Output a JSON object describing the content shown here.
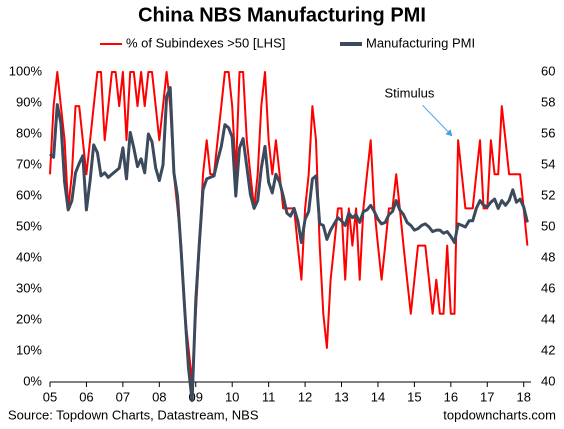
{
  "chart_data": {
    "type": "line",
    "title": "China NBS Manufacturing PMI",
    "source": "Source: Topdown Charts, Datastream, NBS",
    "credit": "topdowncharts.com",
    "annotation": {
      "text": "Stimulus",
      "x": 2016.1,
      "y": 78
    },
    "legend": "top",
    "x": [
      2005,
      2005.1,
      2005.2,
      2005.3,
      2005.4,
      2005.5,
      2005.6,
      2005.7,
      2005.8,
      2005.9,
      2006,
      2006.1,
      2006.2,
      2006.3,
      2006.4,
      2006.5,
      2006.6,
      2006.7,
      2006.8,
      2006.9,
      2007,
      2007.1,
      2007.2,
      2007.3,
      2007.4,
      2007.5,
      2007.6,
      2007.7,
      2007.8,
      2007.9,
      2008,
      2008.1,
      2008.2,
      2008.3,
      2008.4,
      2008.5,
      2008.6,
      2008.7,
      2008.8,
      2008.9,
      2009,
      2009.1,
      2009.2,
      2009.3,
      2009.4,
      2009.5,
      2009.6,
      2009.7,
      2009.8,
      2009.9,
      2010,
      2010.1,
      2010.2,
      2010.3,
      2010.4,
      2010.5,
      2010.6,
      2010.7,
      2010.8,
      2010.9,
      2011,
      2011.1,
      2011.2,
      2011.3,
      2011.4,
      2011.5,
      2011.6,
      2011.7,
      2011.8,
      2011.9,
      2012,
      2012.1,
      2012.2,
      2012.3,
      2012.4,
      2012.5,
      2012.6,
      2012.7,
      2012.8,
      2012.9,
      2013,
      2013.1,
      2013.2,
      2013.3,
      2013.4,
      2013.5,
      2013.6,
      2013.7,
      2013.8,
      2013.9,
      2014,
      2014.1,
      2014.2,
      2014.3,
      2014.4,
      2014.5,
      2014.6,
      2014.7,
      2014.8,
      2014.9,
      2015,
      2015.1,
      2015.2,
      2015.3,
      2015.4,
      2015.5,
      2015.6,
      2015.7,
      2015.8,
      2015.9,
      2016,
      2016.1,
      2016.2,
      2016.3,
      2016.4,
      2016.5,
      2016.6,
      2016.7,
      2016.8,
      2016.9,
      2017,
      2017.1,
      2017.2,
      2017.3,
      2017.4,
      2017.5,
      2017.6,
      2017.7,
      2017.8,
      2017.9,
      2018,
      2018.1
    ],
    "series": [
      {
        "name": "% of Subindexes >50 [LHS]",
        "color": "#ff0000",
        "axis": "y",
        "values": [
          67,
          89,
          100,
          89,
          78,
          56,
          67,
          89,
          89,
          78,
          67,
          78,
          89,
          100,
          100,
          78,
          89,
          100,
          100,
          89,
          100,
          78,
          100,
          100,
          89,
          100,
          89,
          100,
          100,
          89,
          78,
          89,
          100,
          89,
          67,
          56,
          44,
          22,
          11,
          0,
          22,
          44,
          67,
          78,
          67,
          67,
          78,
          89,
          100,
          100,
          89,
          67,
          100,
          100,
          78,
          67,
          56,
          67,
          89,
          100,
          78,
          67,
          78,
          67,
          56,
          56,
          56,
          56,
          44,
          33,
          56,
          67,
          89,
          78,
          44,
          22,
          11,
          33,
          44,
          56,
          56,
          33,
          56,
          44,
          56,
          33,
          56,
          67,
          78,
          56,
          44,
          33,
          44,
          56,
          56,
          67,
          56,
          44,
          33,
          22,
          33,
          44,
          44,
          44,
          33,
          22,
          33,
          22,
          22,
          44,
          22,
          22,
          78,
          67,
          56,
          56,
          56,
          67,
          78,
          56,
          56,
          78,
          67,
          67,
          89,
          78,
          67,
          67,
          67,
          67,
          56,
          44
        ]
      },
      {
        "name": "Manufacturing PMI",
        "color": "#3b4a5c",
        "axis": "y2",
        "values": [
          54.7,
          54.5,
          57.9,
          56.7,
          52.9,
          51.1,
          51.7,
          53.5,
          54.1,
          54.6,
          51.1,
          53,
          55.3,
          54.8,
          53.3,
          53.5,
          53.2,
          53.4,
          53.6,
          53.8,
          55.1,
          53.1,
          56.1,
          55.1,
          53.9,
          54.4,
          53.5,
          56,
          55.5,
          53.8,
          53,
          54,
          58.4,
          59,
          53.5,
          52,
          48.4,
          44.6,
          40.9,
          38.8,
          45.3,
          49,
          52.4,
          53.1,
          53.2,
          53.3,
          54.3,
          55.2,
          56.6,
          56.4,
          55.8,
          52,
          55.1,
          55.7,
          53.9,
          52.1,
          51.2,
          51.7,
          53.8,
          55.2,
          52.9,
          52.2,
          53.4,
          52.9,
          52,
          50.9,
          50.7,
          51.2,
          50.4,
          49,
          50.5,
          51,
          53.1,
          53.3,
          50.2,
          50.1,
          49.2,
          49.8,
          50.2,
          50.6,
          50.4,
          50.1,
          50.9,
          50.6,
          50.8,
          50.3,
          51,
          51.1,
          51.4,
          51,
          50.5,
          50.2,
          50.3,
          50.8,
          51,
          51.7,
          51.1,
          50.8,
          50.3,
          50.1,
          49.8,
          49.9,
          50.1,
          50.2,
          50,
          49.7,
          49.8,
          49.8,
          49.6,
          49.7,
          49.4,
          49,
          50.2,
          50.1,
          50,
          50.4,
          50.4,
          51.2,
          51.7,
          51.4,
          51.3,
          51.6,
          51.8,
          51.2,
          51.7,
          51.4,
          51.7,
          52.4,
          51.6,
          51.8,
          51.3,
          50.3
        ]
      }
    ],
    "xlim": [
      2005,
      2018.2
    ],
    "xticks": [
      {
        "value": 2005,
        "label": "05"
      },
      {
        "value": 2006,
        "label": "06"
      },
      {
        "value": 2007,
        "label": "07"
      },
      {
        "value": 2008,
        "label": "08"
      },
      {
        "value": 2009,
        "label": "09"
      },
      {
        "value": 2010,
        "label": "10"
      },
      {
        "value": 2011,
        "label": "11"
      },
      {
        "value": 2012,
        "label": "12"
      },
      {
        "value": 2013,
        "label": "13"
      },
      {
        "value": 2014,
        "label": "14"
      },
      {
        "value": 2015,
        "label": "15"
      },
      {
        "value": 2016,
        "label": "16"
      },
      {
        "value": 2017,
        "label": "17"
      },
      {
        "value": 2018,
        "label": "18"
      }
    ],
    "ylim": [
      0,
      100
    ],
    "yticks": [
      {
        "value": 0,
        "label": "0%"
      },
      {
        "value": 10,
        "label": "10%"
      },
      {
        "value": 20,
        "label": "20%"
      },
      {
        "value": 30,
        "label": "30%"
      },
      {
        "value": 40,
        "label": "40%"
      },
      {
        "value": 50,
        "label": "50%"
      },
      {
        "value": 60,
        "label": "60%"
      },
      {
        "value": 70,
        "label": "70%"
      },
      {
        "value": 80,
        "label": "80%"
      },
      {
        "value": 90,
        "label": "90%"
      },
      {
        "value": 100,
        "label": "100%"
      }
    ],
    "y2lim": [
      40,
      60
    ],
    "y2ticks": [
      40,
      42,
      44,
      46,
      48,
      50,
      52,
      54,
      56,
      58,
      60
    ]
  }
}
